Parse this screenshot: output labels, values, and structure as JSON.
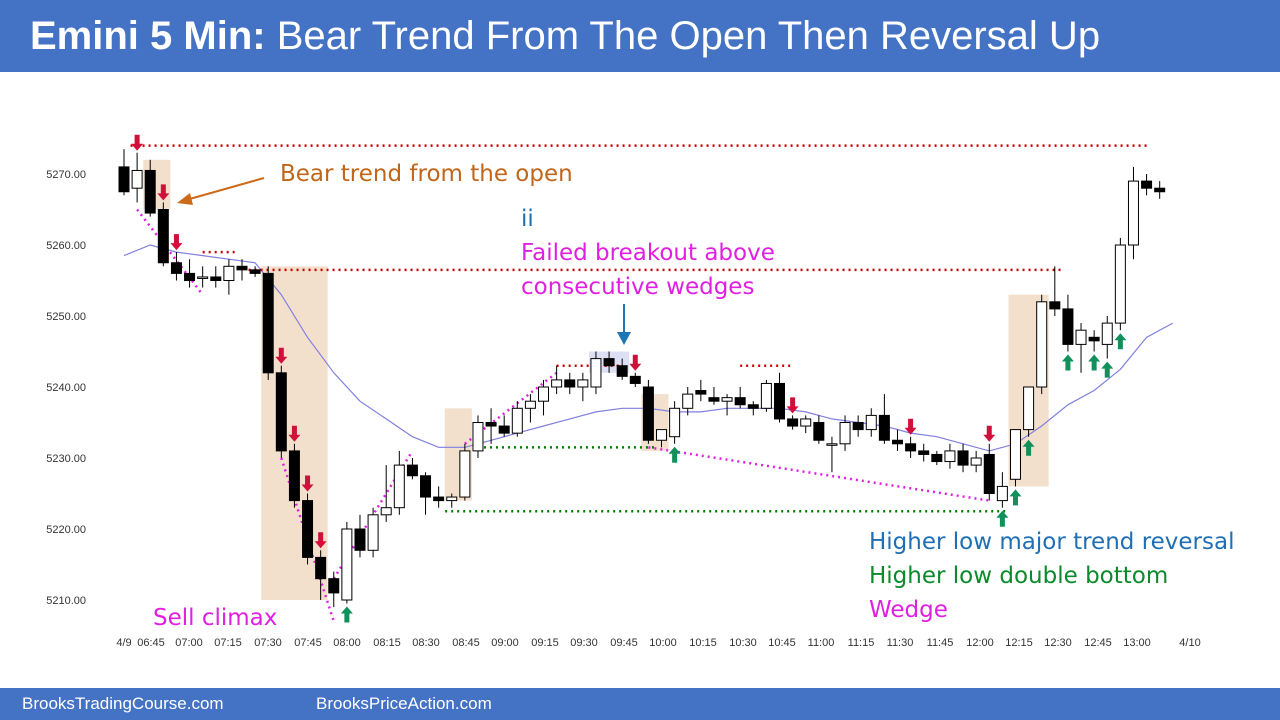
{
  "header": {
    "title_bold": "Emini 5 Min:",
    "title_rest": "Bear Trend From The Open Then Reversal Up"
  },
  "footer": {
    "left_link": "BrooksTradingCourse.com",
    "right_link": "BrooksPriceAction.com"
  },
  "colors": {
    "banner": "#4472c4",
    "bull_body": "#ffffff",
    "bear_body": "#000000",
    "ema": "#8080e0",
    "red_dots": "#cc0000",
    "green_dots": "#008000",
    "magenta": "#e020e0",
    "highlight": "#f3e0cc",
    "sell_arrow": "#d0103a",
    "buy_arrow": "#10905a",
    "blue_arrow": "#1f77b4",
    "orange": "#cc6a1a"
  },
  "annotations": [
    {
      "id": "bear-trend-label",
      "text": "Bear trend from the open",
      "color": "#c0661a"
    },
    {
      "id": "ii-label",
      "text": "ii",
      "color": "#1f6fb4"
    },
    {
      "id": "failed-breakout-label",
      "text": "Failed breakout above",
      "color": "#e020e0"
    },
    {
      "id": "consecutive-wedges-label",
      "text": "consecutive wedges",
      "color": "#e020e0"
    },
    {
      "id": "sell-climax-label",
      "text": "Sell climax",
      "color": "#e020e0"
    },
    {
      "id": "higher-low-major-label",
      "text": "Higher low major trend reversal",
      "color": "#1f6fb4"
    },
    {
      "id": "higher-low-db-label",
      "text": "Higher low double bottom",
      "color": "#0a8a2a"
    },
    {
      "id": "wedge-label",
      "text": "Wedge",
      "color": "#e020e0"
    }
  ],
  "chart_data": {
    "type": "candlestick",
    "y_ticks": [
      "5270.00",
      "5260.00",
      "5250.00",
      "5240.00",
      "5230.00",
      "5220.00",
      "5210.00"
    ],
    "x_ticks": [
      "4/9",
      "06:45",
      "07:00",
      "07:15",
      "07:30",
      "07:45",
      "08:00",
      "08:15",
      "08:30",
      "08:45",
      "09:00",
      "09:15",
      "09:30",
      "09:45",
      "10:00",
      "10:15",
      "10:30",
      "10:45",
      "11:00",
      "11:15",
      "11:30",
      "11:45",
      "12:00",
      "12:15",
      "12:30",
      "12:45",
      "13:00",
      "4/10"
    ],
    "ylim": [
      5206,
      5276
    ],
    "bars": [
      [
        5271,
        5273.5,
        5267,
        5267.5
      ],
      [
        5268,
        5273,
        5266,
        5270.5
      ],
      [
        5270.5,
        5272,
        5264,
        5264.5
      ],
      [
        5265,
        5266,
        5257,
        5257.5
      ],
      [
        5257.5,
        5259,
        5255,
        5256
      ],
      [
        5256,
        5258,
        5254,
        5255
      ],
      [
        5255.5,
        5257,
        5254,
        5255.5
      ],
      [
        5255.5,
        5257,
        5254,
        5255
      ],
      [
        5255,
        5258,
        5253,
        5257
      ],
      [
        5257,
        5258,
        5255,
        5256.5
      ],
      [
        5256.5,
        5257,
        5255.5,
        5256
      ],
      [
        5256,
        5257,
        5241,
        5242
      ],
      [
        5242,
        5243,
        5230,
        5231
      ],
      [
        5231,
        5232,
        5223,
        5224
      ],
      [
        5224,
        5225,
        5215,
        5216
      ],
      [
        5216,
        5217,
        5210,
        5213
      ],
      [
        5213,
        5214,
        5209,
        5211
      ],
      [
        5210,
        5221,
        5209.5,
        5220
      ],
      [
        5220,
        5222,
        5216,
        5217
      ],
      [
        5217,
        5223,
        5216,
        5222
      ],
      [
        5222,
        5229,
        5221,
        5223
      ],
      [
        5223,
        5231,
        5222,
        5229
      ],
      [
        5229,
        5230,
        5227,
        5227.5
      ],
      [
        5227.5,
        5228,
        5222,
        5224.5
      ],
      [
        5224.5,
        5226,
        5223,
        5224
      ],
      [
        5224,
        5225,
        5223,
        5224.5
      ],
      [
        5224.5,
        5232,
        5224,
        5231
      ],
      [
        5231,
        5236,
        5230,
        5235
      ],
      [
        5235,
        5237,
        5232,
        5234.5
      ],
      [
        5234.5,
        5236,
        5233,
        5233.5
      ],
      [
        5233.5,
        5238,
        5233,
        5237
      ],
      [
        5237,
        5239,
        5235,
        5238
      ],
      [
        5238,
        5241,
        5236,
        5240
      ],
      [
        5240,
        5243,
        5239,
        5241
      ],
      [
        5241,
        5242,
        5239,
        5240
      ],
      [
        5240,
        5242,
        5238,
        5241
      ],
      [
        5240,
        5245,
        5239,
        5244
      ],
      [
        5244,
        5245,
        5242,
        5243
      ],
      [
        5243,
        5244,
        5241,
        5241.5
      ],
      [
        5241.5,
        5242,
        5240,
        5240.5
      ],
      [
        5240,
        5241,
        5232,
        5232.5
      ],
      [
        5232.5,
        5234,
        5231.5,
        5234
      ],
      [
        5233,
        5238,
        5232,
        5237
      ],
      [
        5237,
        5240,
        5236,
        5239
      ],
      [
        5239.5,
        5241,
        5238,
        5239
      ],
      [
        5238.5,
        5240,
        5237.5,
        5238
      ],
      [
        5238,
        5239,
        5236,
        5238.5
      ],
      [
        5238.5,
        5240,
        5237,
        5237.5
      ],
      [
        5237.5,
        5238,
        5236,
        5237
      ],
      [
        5237,
        5241,
        5236.5,
        5240.5
      ],
      [
        5240.5,
        5242,
        5235,
        5235.5
      ],
      [
        5235.5,
        5236,
        5234,
        5234.5
      ],
      [
        5234.5,
        5236,
        5233.5,
        5235.5
      ],
      [
        5235,
        5236,
        5232,
        5232.5
      ],
      [
        5232,
        5233,
        5228,
        5232
      ],
      [
        5232,
        5236,
        5231,
        5235
      ],
      [
        5235,
        5236,
        5233,
        5234
      ],
      [
        5234,
        5237,
        5233,
        5236
      ],
      [
        5236,
        5239,
        5232,
        5232.5
      ],
      [
        5232.5,
        5234,
        5231,
        5232
      ],
      [
        5232,
        5233,
        5230,
        5231
      ],
      [
        5231,
        5232,
        5229.5,
        5230.5
      ],
      [
        5230.5,
        5231,
        5229,
        5229.5
      ],
      [
        5229.5,
        5232,
        5228.5,
        5231
      ],
      [
        5231,
        5232,
        5228,
        5229
      ],
      [
        5229,
        5231,
        5228,
        5230
      ],
      [
        5230.5,
        5232,
        5224,
        5225
      ],
      [
        5224,
        5228,
        5223,
        5226
      ],
      [
        5227,
        5234,
        5226,
        5234
      ],
      [
        5234,
        5240,
        5233,
        5240
      ],
      [
        5240,
        5253,
        5239,
        5252
      ],
      [
        5252,
        5257,
        5250,
        5251
      ],
      [
        5251,
        5253,
        5245,
        5246
      ],
      [
        5246,
        5249,
        5242,
        5248
      ],
      [
        5247,
        5248,
        5245,
        5246.5
      ],
      [
        5246,
        5250,
        5244,
        5249
      ],
      [
        5249,
        5261,
        5248,
        5260
      ],
      [
        5260,
        5271,
        5258,
        5269
      ],
      [
        5269,
        5270,
        5267,
        5268
      ],
      [
        5268,
        5269,
        5266.5,
        5267.5
      ]
    ],
    "ema": [
      [
        0,
        5258.5
      ],
      [
        2,
        5260
      ],
      [
        4,
        5259
      ],
      [
        6,
        5258.5
      ],
      [
        8,
        5258
      ],
      [
        10,
        5257.5
      ],
      [
        12,
        5253
      ],
      [
        14,
        5247
      ],
      [
        16,
        5242
      ],
      [
        18,
        5238
      ],
      [
        20,
        5235.5
      ],
      [
        22,
        5233
      ],
      [
        24,
        5231.5
      ],
      [
        26,
        5231.5
      ],
      [
        28,
        5232.5
      ],
      [
        30,
        5233.5
      ],
      [
        32,
        5234.5
      ],
      [
        34,
        5235.5
      ],
      [
        36,
        5236.5
      ],
      [
        38,
        5237
      ],
      [
        40,
        5237
      ],
      [
        42,
        5236.5
      ],
      [
        44,
        5236.5
      ],
      [
        46,
        5237
      ],
      [
        48,
        5237
      ],
      [
        50,
        5237
      ],
      [
        52,
        5236.5
      ],
      [
        54,
        5235.5
      ],
      [
        56,
        5235
      ],
      [
        58,
        5234.5
      ],
      [
        60,
        5233.5
      ],
      [
        62,
        5233
      ],
      [
        64,
        5232
      ],
      [
        66,
        5231
      ],
      [
        68,
        5232
      ],
      [
        70,
        5234.5
      ],
      [
        72,
        5237.5
      ],
      [
        74,
        5239.5
      ],
      [
        76,
        5242.5
      ],
      [
        78,
        5247
      ],
      [
        80,
        5249
      ]
    ],
    "red_levels": [
      {
        "x0": 0.5,
        "x1": 78,
        "y": 5274
      },
      {
        "x0": 9.5,
        "x1": 71.5,
        "y": 5256.5
      },
      {
        "x0": 6,
        "x1": 8.5,
        "y": 5259
      },
      {
        "x0": 33,
        "x1": 38,
        "y": 5243
      },
      {
        "x0": 47,
        "x1": 51,
        "y": 5243
      }
    ],
    "green_levels": [
      {
        "x0": 27,
        "x1": 40.5,
        "y": 5231.5
      },
      {
        "x0": 24.5,
        "x1": 67.5,
        "y": 5222.5
      }
    ],
    "magenta_lines": [
      [
        [
          1,
          5265
        ],
        [
          6,
          5253
        ]
      ],
      [
        [
          12,
          5230
        ],
        [
          16,
          5207
        ]
      ],
      [
        [
          16,
          5213
        ],
        [
          22,
          5231
        ]
      ],
      [
        [
          26,
          5232
        ],
        [
          33,
          5242
        ]
      ],
      [
        [
          40,
          5231.5
        ],
        [
          66,
          5224
        ]
      ]
    ],
    "highlights": [
      [
        2,
        3,
        5265,
        5272
      ],
      [
        11,
        15,
        5210,
        5257
      ],
      [
        25,
        26,
        5224,
        5237
      ],
      [
        40,
        41,
        5231,
        5239
      ],
      [
        68,
        70,
        5226,
        5253
      ]
    ],
    "blue_highlight": [
      36,
      38,
      5242,
      5245
    ],
    "sell_arrows": [
      1,
      3,
      4,
      12,
      13,
      14,
      15,
      39,
      51,
      60,
      66
    ],
    "buy_arrows": [
      17,
      42,
      67,
      68,
      69,
      72,
      74,
      75,
      76
    ]
  }
}
